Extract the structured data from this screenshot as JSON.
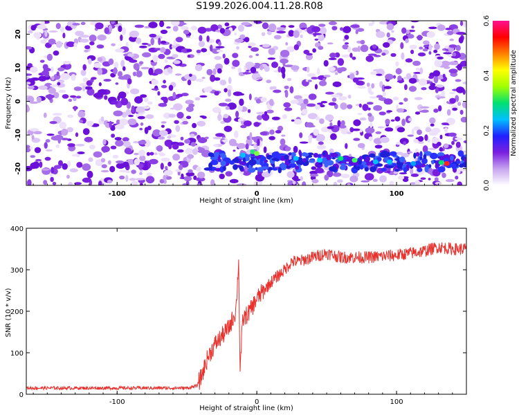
{
  "title": "S199.2026.004.11.28.R08",
  "colors": {
    "snr_line": "#e8302c",
    "frame": "#000000"
  },
  "chart_data": [
    {
      "type": "heatmap",
      "xlabel": "Height of straight line (km)",
      "ylabel": "Frequency (Hz)",
      "xlim": [
        -165,
        150
      ],
      "ylim": [
        -25,
        24
      ],
      "xticks": [
        -100,
        0,
        100
      ],
      "yticks": [
        20,
        10,
        0,
        -10,
        -20
      ],
      "colorbar": {
        "label": "Normalized spectral amplitude",
        "range": [
          0.0,
          0.6
        ],
        "ticks": [
          "0.0",
          "0.2",
          "0.4",
          "0.6"
        ],
        "colors": [
          "#ffffff",
          "#c8a4f0",
          "#7a1fe0",
          "#2020ff",
          "#00c0ff",
          "#00e070",
          "#a0ff00",
          "#ffff00",
          "#ff8000",
          "#ff0000",
          "#ff1090"
        ]
      },
      "feature": {
        "description_band_hz": -18,
        "x_start": -35,
        "x_end": 150
      }
    },
    {
      "type": "line",
      "xlabel": "Height of straight line (km)",
      "ylabel": "SNR (10 * v/v)",
      "xlim": [
        -165,
        150
      ],
      "ylim": [
        0,
        400
      ],
      "xticks": [
        -100,
        0,
        100
      ],
      "yticks": [
        0,
        100,
        200,
        300,
        400
      ],
      "series": [
        {
          "x": [
            -165,
            -120,
            -80,
            -50,
            -43,
            -40,
            -35,
            -30,
            -25,
            -20,
            -15,
            -13,
            -12,
            -10,
            -5,
            0,
            10,
            20,
            25,
            30,
            40,
            50,
            60,
            80,
            100,
            120,
            130,
            140,
            150
          ],
          "y": [
            15,
            15,
            15,
            15,
            20,
            40,
            90,
            120,
            140,
            160,
            200,
            320,
            60,
            180,
            200,
            230,
            270,
            300,
            320,
            320,
            330,
            340,
            330,
            330,
            335,
            345,
            355,
            350,
            350
          ]
        }
      ]
    }
  ]
}
